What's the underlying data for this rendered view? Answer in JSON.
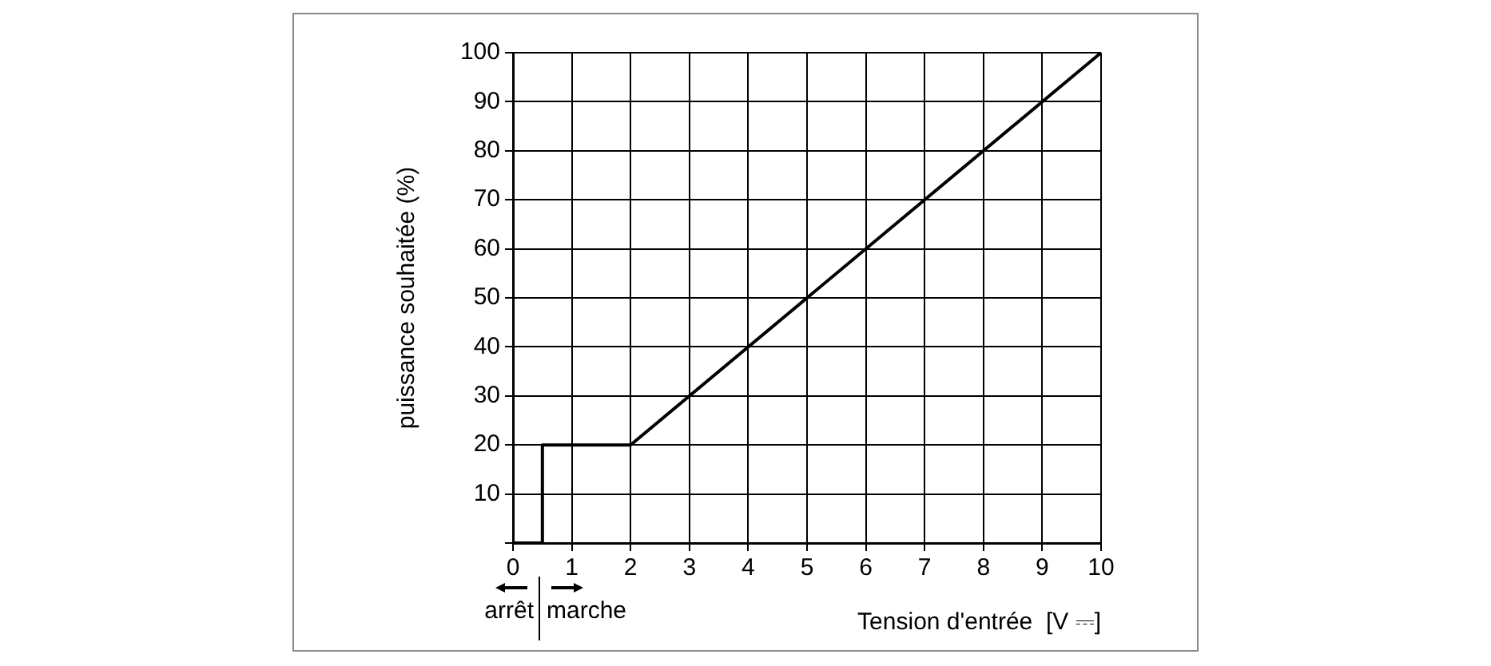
{
  "chart_data": {
    "type": "line",
    "xlabel": "Tension d'entrée  [V ⎓]",
    "ylabel": "puissance souhaitée (%)",
    "x": [
      0,
      0.5,
      0.5,
      2,
      10
    ],
    "series": [
      {
        "color": "#000000",
        "values": [
          0,
          0,
          20,
          20,
          100
        ]
      }
    ],
    "xlim": [
      0,
      10
    ],
    "xticks": [
      0,
      1,
      2,
      3,
      4,
      5,
      6,
      7,
      8,
      9,
      10
    ],
    "ylim": [
      0,
      100
    ],
    "yticks": [
      {
        "value": 0,
        "label": null
      },
      10,
      20,
      30,
      40,
      50,
      60,
      70,
      80,
      90,
      100
    ],
    "grid": true,
    "marker": "none",
    "line_style": "solid",
    "annotations": [
      "arrêt",
      "marche"
    ]
  }
}
